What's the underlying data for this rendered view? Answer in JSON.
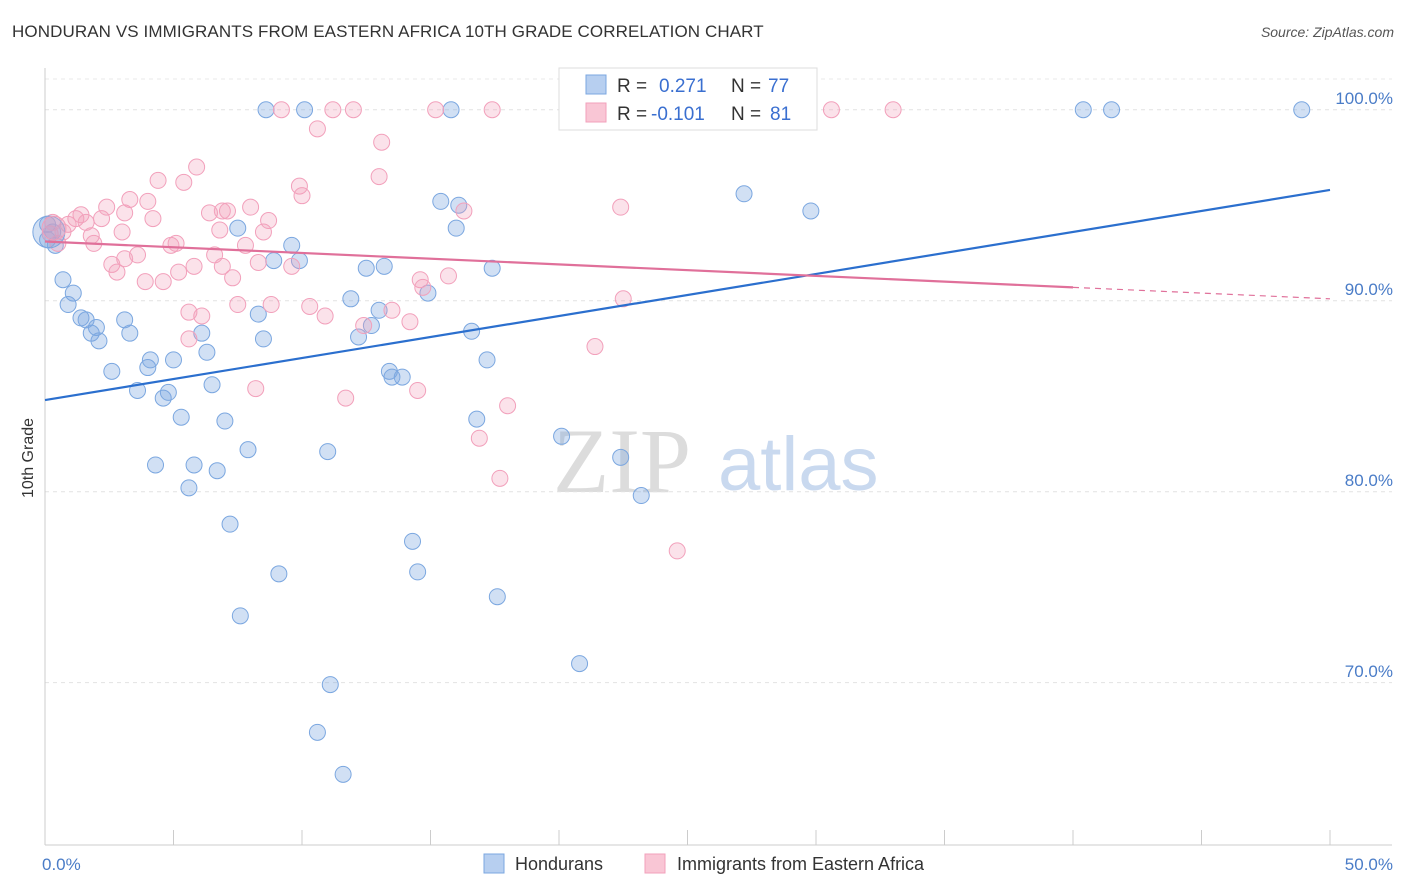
{
  "title": "HONDURAN VS IMMIGRANTS FROM EASTERN AFRICA 10TH GRADE CORRELATION CHART",
  "source": "Source: ZipAtlas.com",
  "watermark": {
    "zip": "ZIP",
    "atlas": "atlas"
  },
  "legend": {
    "r_label": "R =",
    "n_label": "N =",
    "rows": [
      {
        "r": "0.271",
        "n": "77"
      },
      {
        "r": "-0.101",
        "n": "81"
      }
    ]
  },
  "chart_data": {
    "type": "scatter",
    "title": "HONDURAN VS IMMIGRANTS FROM EASTERN AFRICA 10TH GRADE CORRELATION CHART",
    "xlabel": "",
    "ylabel": "10th Grade",
    "xlim": [
      0,
      50
    ],
    "ylim": [
      61.5,
      102.5
    ],
    "x_tick_labels": [
      "0.0%",
      "50.0%"
    ],
    "y_ticks": [
      70,
      80,
      90,
      100
    ],
    "y_tick_labels": [
      "70.0%",
      "80.0%",
      "90.0%",
      "100.0%"
    ],
    "grid": true,
    "legend_position": "top-center",
    "colors": {
      "hondurans": "#7ba7e0",
      "eastern_africa": "#f2a0bb",
      "blue_line": "#2b6fce",
      "pink_line": "#e0709a"
    },
    "series": [
      {
        "name": "Hondurans",
        "trend": {
          "x": [
            0,
            50
          ],
          "y": [
            84.8,
            95.8
          ]
        },
        "points": [
          [
            0.1,
            94.0
          ],
          [
            0.1,
            93.2
          ],
          [
            0.3,
            93.6
          ],
          [
            0.4,
            92.9
          ],
          [
            0.7,
            91.1
          ],
          [
            0.9,
            89.8
          ],
          [
            1.1,
            90.4
          ],
          [
            1.4,
            89.1
          ],
          [
            1.6,
            89.0
          ],
          [
            1.8,
            88.3
          ],
          [
            2.0,
            88.6
          ],
          [
            2.1,
            87.9
          ],
          [
            2.6,
            86.3
          ],
          [
            3.1,
            89.0
          ],
          [
            3.3,
            88.3
          ],
          [
            3.6,
            85.3
          ],
          [
            4.0,
            86.5
          ],
          [
            4.1,
            86.9
          ],
          [
            4.3,
            81.4
          ],
          [
            4.6,
            84.9
          ],
          [
            4.8,
            85.2
          ],
          [
            5.0,
            86.9
          ],
          [
            5.3,
            83.9
          ],
          [
            5.6,
            80.2
          ],
          [
            5.8,
            81.4
          ],
          [
            6.1,
            88.3
          ],
          [
            6.3,
            87.3
          ],
          [
            6.5,
            85.6
          ],
          [
            6.7,
            81.1
          ],
          [
            7.0,
            83.7
          ],
          [
            7.2,
            78.3
          ],
          [
            7.5,
            93.8
          ],
          [
            7.6,
            73.5
          ],
          [
            7.9,
            82.2
          ],
          [
            8.3,
            89.3
          ],
          [
            8.5,
            88.0
          ],
          [
            8.6,
            100.0
          ],
          [
            8.9,
            92.1
          ],
          [
            9.1,
            75.7
          ],
          [
            9.6,
            92.9
          ],
          [
            9.9,
            92.1
          ],
          [
            10.1,
            100.0
          ],
          [
            10.6,
            67.4
          ],
          [
            11.0,
            82.1
          ],
          [
            11.1,
            69.9
          ],
          [
            11.6,
            65.2
          ],
          [
            11.9,
            90.1
          ],
          [
            12.2,
            88.1
          ],
          [
            12.5,
            91.7
          ],
          [
            12.7,
            88.7
          ],
          [
            13.0,
            89.5
          ],
          [
            13.2,
            91.8
          ],
          [
            13.4,
            86.3
          ],
          [
            13.5,
            86.0
          ],
          [
            13.9,
            86.0
          ],
          [
            14.3,
            77.4
          ],
          [
            14.5,
            75.8
          ],
          [
            14.9,
            90.4
          ],
          [
            15.4,
            95.2
          ],
          [
            15.8,
            100.0
          ],
          [
            16.0,
            93.8
          ],
          [
            16.1,
            95.0
          ],
          [
            16.6,
            88.4
          ],
          [
            16.8,
            83.8
          ],
          [
            17.2,
            86.9
          ],
          [
            17.4,
            91.7
          ],
          [
            17.6,
            74.5
          ],
          [
            20.1,
            82.9
          ],
          [
            20.8,
            71.0
          ],
          [
            22.4,
            81.8
          ],
          [
            23.2,
            79.8
          ],
          [
            27.2,
            95.6
          ],
          [
            29.8,
            94.7
          ],
          [
            40.4,
            100.0
          ],
          [
            41.5,
            100.0
          ],
          [
            48.9,
            100.0
          ],
          [
            28.4,
            100.0
          ]
        ]
      },
      {
        "name": "Immigrants from Eastern Africa",
        "trend": {
          "x": [
            0,
            40
          ],
          "y": [
            93.1,
            90.7
          ]
        },
        "points": [
          [
            0.2,
            93.5
          ],
          [
            0.3,
            94.1
          ],
          [
            0.5,
            93.0
          ],
          [
            0.7,
            93.6
          ],
          [
            0.9,
            94.0
          ],
          [
            1.2,
            94.3
          ],
          [
            1.4,
            94.5
          ],
          [
            1.6,
            94.1
          ],
          [
            1.8,
            93.4
          ],
          [
            1.9,
            93.0
          ],
          [
            2.2,
            94.3
          ],
          [
            2.4,
            94.9
          ],
          [
            2.6,
            91.9
          ],
          [
            2.8,
            91.5
          ],
          [
            3.0,
            93.6
          ],
          [
            3.1,
            94.6
          ],
          [
            3.3,
            95.3
          ],
          [
            3.6,
            92.4
          ],
          [
            3.9,
            91.0
          ],
          [
            4.0,
            95.2
          ],
          [
            4.2,
            94.3
          ],
          [
            4.4,
            96.3
          ],
          [
            4.6,
            91.0
          ],
          [
            4.9,
            92.9
          ],
          [
            5.1,
            93.0
          ],
          [
            5.2,
            91.5
          ],
          [
            5.4,
            96.2
          ],
          [
            5.6,
            89.4
          ],
          [
            5.6,
            88.0
          ],
          [
            5.8,
            91.8
          ],
          [
            5.9,
            97.0
          ],
          [
            6.1,
            89.2
          ],
          [
            6.4,
            94.6
          ],
          [
            6.6,
            92.4
          ],
          [
            6.8,
            93.7
          ],
          [
            6.9,
            91.8
          ],
          [
            7.1,
            94.7
          ],
          [
            7.3,
            91.2
          ],
          [
            7.5,
            89.8
          ],
          [
            7.8,
            92.9
          ],
          [
            8.0,
            94.9
          ],
          [
            8.2,
            85.4
          ],
          [
            8.3,
            92.0
          ],
          [
            8.5,
            93.6
          ],
          [
            8.7,
            94.2
          ],
          [
            8.8,
            89.8
          ],
          [
            9.6,
            91.8
          ],
          [
            9.9,
            96.0
          ],
          [
            10.0,
            95.5
          ],
          [
            10.3,
            89.7
          ],
          [
            10.6,
            99.0
          ],
          [
            10.9,
            89.2
          ],
          [
            11.2,
            100.0
          ],
          [
            11.7,
            84.9
          ],
          [
            12.0,
            100.0
          ],
          [
            12.4,
            88.7
          ],
          [
            13.0,
            96.5
          ],
          [
            13.1,
            98.3
          ],
          [
            13.5,
            89.5
          ],
          [
            14.2,
            88.9
          ],
          [
            14.5,
            85.3
          ],
          [
            14.6,
            91.1
          ],
          [
            14.7,
            90.7
          ],
          [
            15.2,
            100.0
          ],
          [
            15.7,
            91.3
          ],
          [
            16.3,
            94.7
          ],
          [
            16.9,
            82.8
          ],
          [
            17.4,
            100.0
          ],
          [
            18.0,
            84.5
          ],
          [
            17.7,
            80.7
          ],
          [
            21.4,
            87.6
          ],
          [
            22.4,
            94.9
          ],
          [
            22.5,
            90.1
          ],
          [
            24.3,
            100.0
          ],
          [
            24.6,
            76.9
          ],
          [
            28.8,
            100.0
          ],
          [
            30.6,
            100.0
          ],
          [
            33.0,
            100.0
          ],
          [
            6.9,
            94.7
          ],
          [
            3.1,
            92.2
          ],
          [
            9.2,
            100.0
          ]
        ]
      }
    ]
  }
}
